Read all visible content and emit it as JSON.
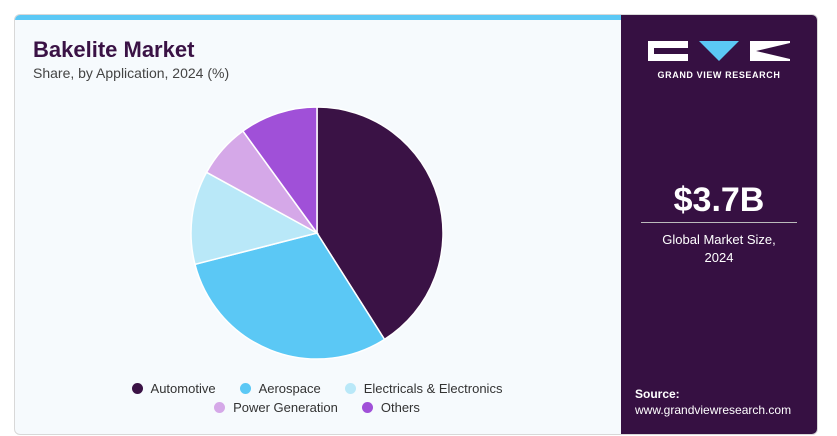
{
  "chart_data": {
    "type": "pie",
    "title": "Bakelite Market",
    "subtitle": "Share, by Application, 2024 (%)",
    "categories": [
      "Automotive",
      "Aerospace",
      "Electricals & Electronics",
      "Power Generation",
      "Others"
    ],
    "values": [
      41,
      30,
      12,
      7,
      10
    ],
    "colors": [
      "#3a1245",
      "#5bc8f5",
      "#b9e8f8",
      "#d5a8e8",
      "#a050d8"
    ]
  },
  "brand": "GRAND VIEW RESEARCH",
  "market_size": {
    "value": "$3.7B",
    "label": "Global Market Size, 2024"
  },
  "source": {
    "label": "Source:",
    "url": "www.grandviewresearch.com"
  }
}
